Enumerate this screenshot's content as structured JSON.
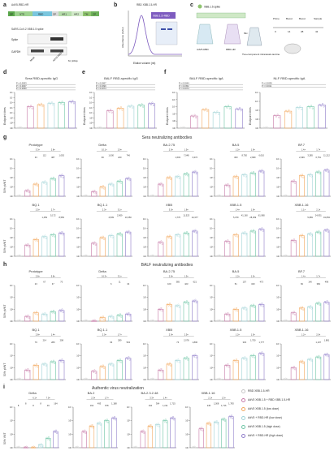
{
  "panel_letters": [
    "a",
    "b",
    "c",
    "d",
    "e",
    "f",
    "g",
    "h",
    "i"
  ],
  "panel_a": {
    "construct_label": "AdV5-RBD-HR",
    "segments": [
      "SP",
      "NTD",
      "RBD",
      "SP",
      "HR1",
      "HR2",
      "TM",
      "CP"
    ],
    "blot_title": "SARS-CoV-2 XBB.1.5 spike",
    "blot_rows": [
      "Spike",
      "GAPDH"
    ],
    "mw_label": "M, (kDa)",
    "lane_labels": [
      "Mock",
      "AdV5-RBD"
    ]
  },
  "panel_b": {
    "title": "XBB.1.5-RBD",
    "subtitle": "RBD XBB.1.5-HR",
    "xlabel": "Elution volume (ml)",
    "ylabel": "Absorbance (mAU)"
  },
  "panel_c": {
    "labels": [
      "XBB.1.5 spike",
      "AdV5-RBD",
      "RBD-HR",
      "Mix",
      "Two-component intranasal vaccine",
      "Prime",
      "Boost",
      "Boost",
      "Sample"
    ],
    "days": [
      "0",
      "14",
      "28",
      "42"
    ]
  },
  "section_g_title": "Sera neutralizing antibodies",
  "section_h_title": "BALF neutralizing antibodies",
  "section_i_title": "Authentic virus neutralization",
  "legend": [
    {
      "label": "RBD XBB.1.5-HR",
      "color": "#c7c7c7"
    },
    {
      "label": "AdV5 XBB.1.5 + RBD XBB.1.5-HR",
      "color": "#c77aa8"
    },
    {
      "label": "AdV5 XBB.1.5 (low dose)",
      "color": "#f2a65a"
    },
    {
      "label": "AdV5 + RBD-HR (low dose)",
      "color": "#9fd2d6"
    },
    {
      "label": "AdV5 XBB.1.5 (high dose)",
      "color": "#6cc4a4"
    },
    {
      "label": "AdV5 + RBD-HR (high dose)",
      "color": "#8e7bc9"
    }
  ],
  "chart_data": [
    {
      "id": "d",
      "type": "bar",
      "title": "Sera RBD-specific IgG",
      "ylabel": "Endpoint titres",
      "ylog": true,
      "ylim": [
        1,
        8
      ],
      "series_values": [
        1.0,
        5.2,
        5.6,
        5.9,
        6.0,
        6.2
      ],
      "annotations": [
        "P = 0.0053",
        "P = 0.0007",
        "P = 0.0050"
      ]
    },
    {
      "id": "e",
      "type": "bar",
      "title": "BALF RBD-specific IgG",
      "ylabel": "Endpoint titres",
      "ylog": true,
      "ylim": [
        1,
        8
      ],
      "series_values": [
        1.0,
        4.4,
        4.9,
        5.3,
        5.5,
        5.8
      ],
      "annotations": [
        "P = 0.0067",
        "P = 0.0099",
        "P = 0.0074"
      ]
    },
    {
      "id": "f1",
      "type": "bar",
      "title": "BALF RBD-specific IgA",
      "ylabel": "Endpoint titres",
      "ylog": true,
      "ylim": [
        1,
        6
      ],
      "series_values": [
        1.0,
        2.7,
        3.6,
        3.2,
        4.0,
        3.7
      ],
      "annotations": [
        "P = 0.0044",
        "P = 0.0352",
        "P = 0.0074"
      ]
    },
    {
      "id": "f2",
      "type": "bar",
      "title": "NLF RBD-specific IgA",
      "ylabel": "Endpoint titres",
      "ylog": true,
      "ylim": [
        1,
        5
      ],
      "series_values": [
        1.0,
        2.4,
        2.9,
        3.3,
        3.4,
        3.6
      ],
      "annotations": [
        "P = 0.0039",
        "P = 0.0011"
      ]
    },
    {
      "id": "g1",
      "type": "bar",
      "title": "Prototype",
      "ylabel": "50% pVNT",
      "ylog": true,
      "ylim": [
        1,
        5
      ],
      "series_values": [
        1.0,
        1.6,
        2.3,
        2.5,
        2.9,
        3.2
      ],
      "annotations": [
        "33",
        "112",
        "387",
        "1,092"
      ],
      "fold": [
        "3.3×",
        "2.8×"
      ]
    },
    {
      "id": "g2",
      "type": "bar",
      "title": "Delta",
      "ylog": true,
      "ylim": [
        1,
        5
      ],
      "series_values": [
        1.0,
        1.5,
        2.0,
        2.3,
        2.6,
        2.9
      ],
      "annotations": [
        "99",
        "1,000",
        "240",
        "746"
      ],
      "fold": [
        "10.1×",
        "2.9×"
      ]
    },
    {
      "id": "g3",
      "type": "bar",
      "title": "BA.2.75",
      "ylog": true,
      "ylim": [
        1,
        5
      ],
      "series_values": [
        1.0,
        2.3,
        3.0,
        3.1,
        3.4,
        3.6
      ],
      "annotations": [
        "1,603",
        "7,048",
        "3,372"
      ],
      "fold": [
        "2.9×",
        "1.5×"
      ]
    },
    {
      "id": "g4",
      "type": "bar",
      "title": "BA.5",
      "ylog": true,
      "ylim": [
        1,
        5
      ],
      "series_values": [
        1.0,
        2.2,
        3.1,
        3.3,
        3.5,
        3.7
      ],
      "annotations": [
        "300",
        "8,750",
        "2,680",
        "6,010"
      ],
      "fold": [
        "1.2×",
        "1.9×"
      ]
    },
    {
      "id": "g5",
      "type": "bar",
      "title": "BF.7",
      "ylog": true,
      "ylim": [
        1,
        5
      ],
      "series_values": [
        1.0,
        2.6,
        3.2,
        3.3,
        3.6,
        3.8
      ],
      "annotations": [
        "2,099",
        "3,285",
        "6,751",
        "11,212"
      ],
      "fold": [
        "1.4×",
        "1.7×"
      ]
    },
    {
      "id": "g6",
      "type": "bar",
      "title": "BQ.1",
      "ylabel": "50% pVNT",
      "ylog": true,
      "ylim": [
        1,
        5
      ],
      "series_values": [
        1.0,
        2.2,
        2.8,
        3.1,
        3.3,
        3.5
      ],
      "annotations": [
        "1,459",
        "5,172",
        "8,550"
      ],
      "fold": [
        "2.5×",
        "2.7×"
      ]
    },
    {
      "id": "g7",
      "type": "bar",
      "title": "BQ.1.1",
      "ylog": true,
      "ylim": [
        1,
        5
      ],
      "series_values": [
        1.0,
        2.4,
        3.0,
        3.2,
        3.4,
        3.6
      ],
      "annotations": [
        "4,509",
        "2,909",
        "10,350"
      ],
      "fold": [
        "2.3×",
        "3.1×"
      ]
    },
    {
      "id": "g8",
      "type": "bar",
      "title": "XBB",
      "ylog": true,
      "ylim": [
        1,
        5
      ],
      "series_values": [
        1.0,
        2.5,
        3.1,
        3.3,
        3.5,
        3.7
      ],
      "annotations": [
        "1,770",
        "11,523",
        "24,377"
      ],
      "fold": [
        "3.5×",
        "1.8×"
      ]
    },
    {
      "id": "g9",
      "type": "bar",
      "title": "XBB.1.5",
      "ylog": true,
      "ylim": [
        1,
        5
      ],
      "series_values": [
        1.0,
        2.6,
        3.3,
        3.5,
        3.7,
        3.9
      ],
      "annotations": [
        "5,379",
        "41,160",
        "28,259",
        "61,980"
      ],
      "fold": [
        "1.4×",
        "1.9×"
      ]
    },
    {
      "id": "g10",
      "type": "bar",
      "title": "XBB.1.16",
      "ylog": true,
      "ylim": [
        1,
        5
      ],
      "series_values": [
        1.0,
        2.7,
        3.2,
        3.4,
        3.6,
        3.8
      ],
      "annotations": [
        "5,089",
        "24,931",
        "19,653"
      ],
      "fold": [
        "1.1×",
        "2.1×"
      ]
    },
    {
      "id": "h1",
      "type": "bar",
      "title": "Prototype",
      "ylabel": "50% pVNT",
      "ylog": true,
      "ylim": [
        1,
        4
      ],
      "series_values": [
        1.0,
        1.4,
        1.7,
        1.6,
        1.8,
        1.9
      ],
      "annotations": [
        "23",
        "67",
        "37",
        "70"
      ],
      "fold": [
        "2.8×",
        "5.8×"
      ]
    },
    {
      "id": "h2",
      "type": "bar",
      "title": "Delta",
      "ylog": true,
      "ylim": [
        1,
        4
      ],
      "series_values": [
        1.0,
        1.0,
        1.3,
        1.4,
        1.5,
        1.6
      ],
      "annotations": [
        "6",
        "11",
        "34"
      ],
      "fold": [
        "16.3×",
        "3.1×"
      ]
    },
    {
      "id": "h3",
      "type": "bar",
      "title": "BA.2.75",
      "ylog": true,
      "ylim": [
        1,
        4
      ],
      "series_values": [
        1.0,
        2.0,
        2.4,
        2.3,
        2.6,
        2.7
      ],
      "annotations": [
        "100",
        "385",
        "423",
        "621"
      ],
      "fold": [
        "2.8×",
        "1.5×"
      ]
    },
    {
      "id": "h4",
      "type": "bar",
      "title": "BA.5",
      "ylog": true,
      "ylim": [
        1,
        4
      ],
      "series_values": [
        1.0,
        1.6,
        2.0,
        2.1,
        2.3,
        2.4
      ],
      "annotations": [
        "51",
        "157",
        "340",
        "473"
      ],
      "fold": [
        "1.2×",
        "1.5×"
      ]
    },
    {
      "id": "h5",
      "type": "bar",
      "title": "BF.7",
      "ylog": true,
      "ylim": [
        1,
        4
      ],
      "series_values": [
        1.0,
        1.7,
        2.1,
        2.2,
        2.5,
        2.6
      ],
      "annotations": [
        "84",
        "140",
        "384",
        "499"
      ],
      "fold": [
        "1.4×",
        "1.7×"
      ]
    },
    {
      "id": "h6",
      "type": "bar",
      "title": "BQ.1",
      "ylabel": "50% pVNT",
      "ylog": true,
      "ylim": [
        1,
        4
      ],
      "series_values": [
        1.0,
        1.8,
        2.2,
        2.3,
        2.5,
        2.6
      ],
      "annotations": [
        "79",
        "214",
        "280",
        "208"
      ],
      "fold": [
        "2.8×",
        "1.4×"
      ]
    },
    {
      "id": "h7",
      "type": "bar",
      "title": "BQ.1.1",
      "ylog": true,
      "ylim": [
        1,
        4
      ],
      "series_values": [
        1.0,
        1.7,
        2.1,
        2.3,
        2.6,
        2.8
      ],
      "annotations": [
        "93",
        "289",
        "543"
      ],
      "fold": [
        "2.0×",
        "1.7×"
      ]
    },
    {
      "id": "h8",
      "type": "bar",
      "title": "XBB",
      "ylog": true,
      "ylim": [
        1,
        4
      ],
      "series_values": [
        1.0,
        1.8,
        2.3,
        2.6,
        2.8,
        3.0
      ],
      "annotations": [
        "74",
        "2,078",
        "1,800"
      ],
      "fold": [
        "2.9×",
        "2.5×"
      ]
    },
    {
      "id": "h9",
      "type": "bar",
      "title": "XBB.1.5",
      "ylog": true,
      "ylim": [
        1,
        4
      ],
      "series_values": [
        1.0,
        2.2,
        2.6,
        2.8,
        3.0,
        3.2
      ],
      "annotations": [
        "333",
        "1,750",
        "1,777"
      ],
      "fold": [
        "1.2×",
        "1.5×"
      ]
    },
    {
      "id": "h10",
      "type": "bar",
      "title": "XBB.1.16",
      "ylog": true,
      "ylim": [
        1,
        4
      ],
      "series_values": [
        1.0,
        2.0,
        2.5,
        2.7,
        2.9,
        3.1
      ],
      "annotations": [
        "1,107",
        "1,881"
      ],
      "fold": [
        "1.2×",
        "2.0×"
      ]
    },
    {
      "id": "i1",
      "type": "bar",
      "title": "Delta",
      "ylabel": "50% VNT",
      "ylog": true,
      "ylim": [
        1,
        4
      ],
      "series_values": [
        1.0,
        1.0,
        1.0,
        1.2,
        1.7,
        2.2
      ],
      "annotations": [
        "8",
        "8",
        "8",
        "8",
        "49",
        "164"
      ],
      "fold": [
        "6.1×",
        "7.0×"
      ]
    },
    {
      "id": "i2",
      "type": "bar",
      "title": "BA.2",
      "ylog": true,
      "ylim": [
        1,
        4
      ],
      "series_values": [
        1.0,
        2.2,
        2.6,
        2.8,
        3.0,
        3.2
      ],
      "annotations": [
        "164",
        "493",
        "678",
        "1,188"
      ],
      "fold": [
        "2.3×",
        "1.7×"
      ]
    },
    {
      "id": "i3",
      "type": "bar",
      "title": "BA.2.3.2.48",
      "ylog": true,
      "ylim": [
        1,
        4
      ],
      "series_values": [
        1.0,
        2.2,
        2.6,
        2.7,
        3.0,
        3.2
      ],
      "annotations": [
        "164",
        "364",
        "1,211",
        "1,715"
      ],
      "fold": [
        "3.3×",
        "1.4×"
      ]
    },
    {
      "id": "i4",
      "type": "bar",
      "title": "XBB.1.16",
      "ylog": true,
      "ylim": [
        1,
        4
      ],
      "series_values": [
        1.0,
        2.4,
        2.8,
        2.9,
        3.1,
        3.3
      ],
      "annotations": [
        "245",
        "1,008",
        "1,716",
        "1,783"
      ],
      "fold": [
        "2.1×",
        "1.3×"
      ]
    }
  ]
}
